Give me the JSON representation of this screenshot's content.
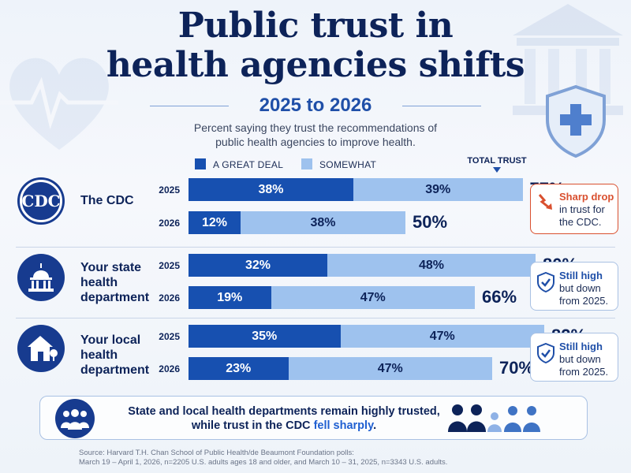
{
  "title_line1": "Public trust in",
  "title_line2": "health agencies shifts",
  "subtitle": "2025 to 2026",
  "description_line1": "Percent saying they trust the recommendations of",
  "description_line2": "public health agencies to improve health.",
  "legend": {
    "great_deal": "A GREAT DEAL",
    "somewhat": "SOMEWHAT",
    "total_trust": "TOTAL TRUST"
  },
  "colors": {
    "great_deal": "#1750b0",
    "somewhat": "#9ec2ee",
    "accent_red": "#d9502f"
  },
  "agencies": [
    {
      "name_lines": [
        "The CDC"
      ],
      "icon": "cdc-logo-icon",
      "icon_text": "CDC"
    },
    {
      "name_lines": [
        "Your state",
        "health",
        "department"
      ],
      "icon": "capitol-icon"
    },
    {
      "name_lines": [
        "Your local",
        "health",
        "department"
      ],
      "icon": "house-icon"
    }
  ],
  "callouts": [
    {
      "bold": "Sharp drop",
      "rest": [
        "in trust for",
        "the CDC."
      ],
      "icon": "down-trend-arrow-icon"
    },
    {
      "bold": "Still high",
      "rest": [
        "but down",
        "from 2025."
      ],
      "icon": "shield-check-icon"
    },
    {
      "bold": "Still high",
      "rest": [
        "but down",
        "from 2025."
      ],
      "icon": "shield-check-icon"
    }
  ],
  "chart_data": {
    "type": "bar",
    "orientation": "horizontal-stacked",
    "title": "Public trust in health agencies shifts",
    "subtitle": "2025 to 2026",
    "categories": [
      "The CDC",
      "Your state health department",
      "Your local health department"
    ],
    "years": [
      "2025",
      "2026"
    ],
    "series": [
      {
        "name": "A GREAT DEAL",
        "values": [
          [
            38,
            12
          ],
          [
            32,
            19
          ],
          [
            35,
            23
          ]
        ]
      },
      {
        "name": "SOMEWHAT",
        "values": [
          [
            39,
            38
          ],
          [
            48,
            47
          ],
          [
            47,
            47
          ]
        ]
      }
    ],
    "totals": [
      [
        77,
        50
      ],
      [
        80,
        66
      ],
      [
        82,
        70
      ]
    ],
    "xlim": [
      0,
      100
    ],
    "legend": "top",
    "unit": "%"
  },
  "summary": {
    "part1": "State and local health departments remain highly trusted,",
    "part2": "while trust in the CDC",
    "highlight": "fell sharply",
    "end": "."
  },
  "source_line1": "Source: Harvard T.H. Chan School of Public Health/de Beaumont Foundation polls:",
  "source_line2": "March 19 – April 1, 2026, n=2205 U.S. adults ages 18 and older, and March 10 – 31, 2025, n=3343 U.S. adults."
}
